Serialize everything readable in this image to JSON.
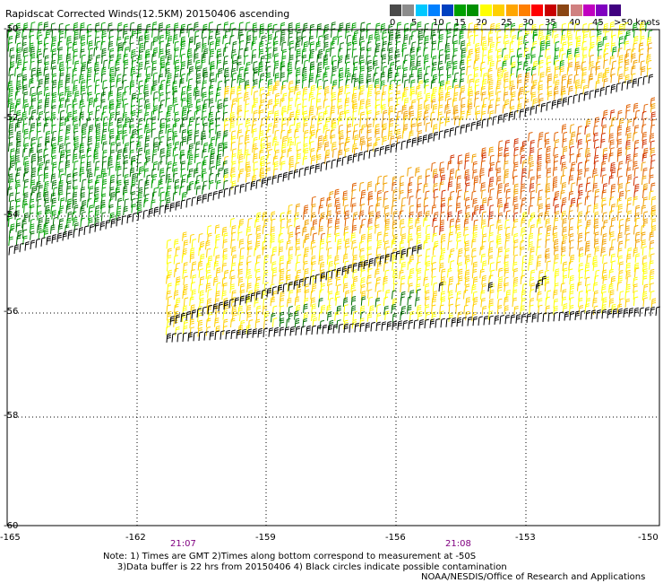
{
  "title": "Rapidscat Corrected Winds(12.5KM) 20150406 ascending",
  "legend": {
    "colors": [
      "#4a4a4a",
      "#8c8c8c",
      "#00c8ff",
      "#0080ff",
      "#0040c0",
      "#00a000",
      "#009000",
      "#ffff00",
      "#ffd000",
      "#ffa500",
      "#ff7f00",
      "#ff0000",
      "#c80000",
      "#8b4513",
      "#d08080",
      "#c000c0",
      "#8000c0",
      "#400080"
    ],
    "labels": [
      "0",
      "5",
      "10",
      "15",
      "20",
      "25",
      "30",
      "35",
      "40",
      "45",
      ">50 knots"
    ]
  },
  "y_axis": {
    "labels": [
      "-50",
      "-52",
      "-54",
      "-56",
      "-58",
      "-60"
    ]
  },
  "x_axis": {
    "labels": [
      "-165",
      "-162",
      "-159",
      "-156",
      "-153",
      "-150"
    ]
  },
  "times": [
    "21:07",
    "21:08"
  ],
  "notes": "Note: 1) Times are GMT 2)Times along bottom correspond to measurement at -50S\n     3)Data buffer is 22 hrs from 20150406 4) Black circles indicate possible contamination",
  "credit": "NOAA/NESDIS/Office of Research and Applications",
  "wind_colors": {
    "black": "#000000",
    "green_dark": "#007000",
    "green": "#00a000",
    "yellow": "#ffff00",
    "gold": "#ffd000",
    "orange": "#f0a000",
    "dark_orange": "#e06000",
    "red": "#d03000"
  }
}
